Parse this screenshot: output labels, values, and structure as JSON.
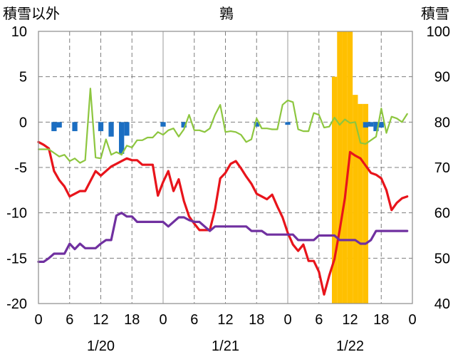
{
  "chart_data": {
    "type": "line",
    "title": "鶉",
    "left_axis_label": "積雪以外",
    "right_axis_label": "積雪",
    "left_ylim": [
      -20,
      10
    ],
    "left_yticks": [
      "10",
      "5",
      "0",
      "-5",
      "-10",
      "-15",
      "-20"
    ],
    "right_ylim": [
      40,
      100
    ],
    "right_yticks": [
      "100",
      "90",
      "80",
      "70",
      "60",
      "50",
      "40"
    ],
    "x_hours_range": [
      0,
      72
    ],
    "x_tick_labels": [
      "0",
      "6",
      "12",
      "18",
      "0",
      "6",
      "12",
      "18",
      "0",
      "6",
      "12",
      "18",
      "0"
    ],
    "date_labels": [
      {
        "label": "1/20",
        "hour": 12
      },
      {
        "label": "1/21",
        "hour": 36
      },
      {
        "label": "1/22",
        "hour": 60
      }
    ],
    "grid": true,
    "series": [
      {
        "color": "#e8141b",
        "axis": "left",
        "type": "line",
        "values": [
          -2.2,
          -2.5,
          -2.9,
          -5.4,
          -6.4,
          -7.1,
          -8.2,
          -7.9,
          -7.6,
          -7.6,
          -6.5,
          -5.4,
          -5.9,
          -5.4,
          -4.9,
          -4.6,
          -4.3,
          -4.0,
          -4.2,
          -4.2,
          -4.7,
          -4.7,
          -4.7,
          -8.1,
          -6.6,
          -5.4,
          -7.6,
          -6.3,
          -8.7,
          -10.4,
          -11.2,
          -11.9,
          -11.9,
          -11.9,
          -9.6,
          -6.2,
          -5.6,
          -4.6,
          -4.3,
          -5.1,
          -6.0,
          -6.8,
          -7.9,
          -8.2,
          -8.5,
          -8.0,
          -9.3,
          -10.5,
          -12.2,
          -13.5,
          -14.2,
          -13.5,
          -15.3,
          -15.3,
          -16.5,
          -19.0,
          -16.9,
          -15.1,
          -11.9,
          -8.4,
          -3.3,
          -3.7,
          -4.0,
          -4.8,
          -5.6,
          -5.8,
          -6.2,
          -7.5,
          -9.7,
          -8.9,
          -8.4,
          -8.2
        ]
      },
      {
        "color": "#8dc63f",
        "axis": "left",
        "type": "line",
        "values": [
          -3.0,
          -3.0,
          -3.0,
          -3.4,
          -3.8,
          -3.6,
          -4.3,
          -4.0,
          -4.5,
          -4.2,
          3.7,
          -3.9,
          -4.0,
          -1.9,
          -3.6,
          -3.3,
          -3.6,
          -2.6,
          -2.8,
          -2.0,
          -2.0,
          -1.7,
          -1.7,
          -1.1,
          -1.4,
          -0.9,
          -0.7,
          -1.6,
          -0.8,
          0.8,
          -0.9,
          -0.9,
          -1.1,
          -0.7,
          0.8,
          1.9,
          -1.1,
          -1.0,
          -1.1,
          -1.4,
          -2.2,
          -1.9,
          0.4,
          -0.7,
          -0.7,
          -0.8,
          -0.8,
          1.9,
          2.4,
          2.2,
          -0.8,
          -1.0,
          -1.0,
          1.0,
          0.8,
          -0.6,
          -0.5,
          0.5,
          -0.3,
          0.3,
          -0.1,
          0.0,
          -2.3,
          -2.4,
          -2.0,
          -1.6,
          1.5,
          -1.2,
          0.6,
          0.4,
          0.0,
          0.9
        ]
      },
      {
        "color": "#7030a0",
        "axis": "left",
        "type": "line",
        "values": [
          -15.4,
          -15.4,
          -15.0,
          -14.5,
          -14.5,
          -14.5,
          -13.4,
          -14.0,
          -13.4,
          -13.9,
          -13.9,
          -13.9,
          -13.4,
          -13.0,
          -13.0,
          -10.3,
          -10.0,
          -10.4,
          -10.4,
          -11.0,
          -11.0,
          -11.0,
          -11.0,
          -11.0,
          -11.0,
          -11.5,
          -11.0,
          -10.5,
          -10.5,
          -10.8,
          -11.0,
          -11.0,
          -11.5,
          -12.0,
          -11.5,
          -11.5,
          -11.5,
          -11.5,
          -11.5,
          -11.5,
          -11.5,
          -12.0,
          -12.0,
          -12.0,
          -12.4,
          -12.4,
          -12.4,
          -12.4,
          -12.4,
          -12.4,
          -13.0,
          -13.0,
          -13.0,
          -13.0,
          -12.5,
          -12.5,
          -12.5,
          -12.5,
          -13.0,
          -13.0,
          -13.0,
          -13.0,
          -13.4,
          -13.4,
          -13.0,
          -12.0,
          -12.0,
          -12.0,
          -12.0,
          -12.0,
          -12.0,
          -12.0
        ]
      }
    ],
    "bars_left": {
      "color": "#1b6ec2",
      "hours": [
        3,
        4,
        7,
        12,
        14,
        16,
        17,
        24,
        28,
        42,
        48,
        63,
        64,
        65,
        66
      ],
      "values": [
        -1.0,
        -0.6,
        -1.0,
        -1.0,
        -1.6,
        -3.5,
        -1.5,
        -0.5,
        -0.6,
        -0.5,
        -0.3,
        -0.6,
        -0.5,
        -1.0,
        -0.6
      ]
    },
    "bars_right": {
      "color": "#ffc000",
      "hours": [
        57,
        58,
        59,
        60,
        61,
        62,
        63
      ],
      "values": [
        90,
        100,
        100,
        100,
        86,
        84,
        84
      ]
    }
  }
}
